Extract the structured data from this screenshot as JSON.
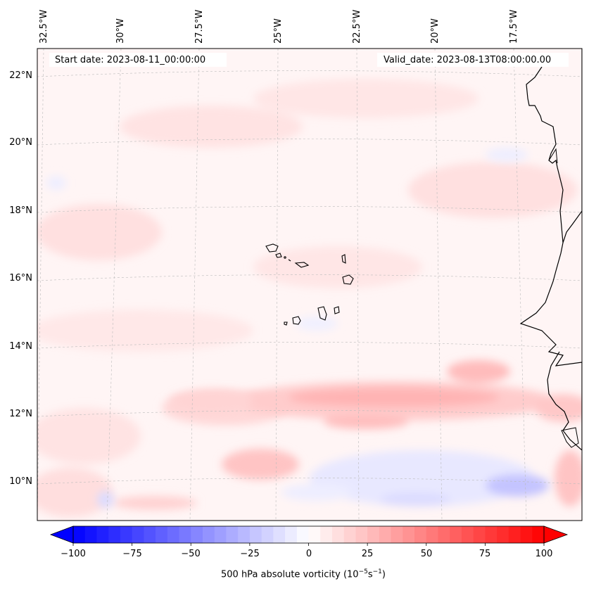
{
  "map": {
    "start_date": "Start date: 2023-08-11_00:00:00",
    "valid_date": "Valid_date: 2023-08-13T08:00:00.00",
    "lon_labels": [
      "32.5°W",
      "30°W",
      "27.5°W",
      "25°W",
      "22.5°W",
      "20°W",
      "17.5°W"
    ],
    "lat_labels": [
      "22°N",
      "20°N",
      "18°N",
      "16°N",
      "14°N",
      "12°N",
      "10°N"
    ],
    "colorbar": {
      "ticks": [
        "−100",
        "−75",
        "−50",
        "−25",
        "0",
        "25",
        "50",
        "75",
        "100"
      ],
      "tick_values": [
        -100,
        -75,
        -50,
        -25,
        0,
        25,
        50,
        75,
        100
      ],
      "label": "500 hPa absolute vorticity (10",
      "label_exp1": "−5",
      "label_mid": "s",
      "label_exp2": "−1",
      "label_end": ")",
      "low_color": "#0000ff",
      "mid_color": "#ffffff",
      "high_color": "#ff0000"
    }
  }
}
